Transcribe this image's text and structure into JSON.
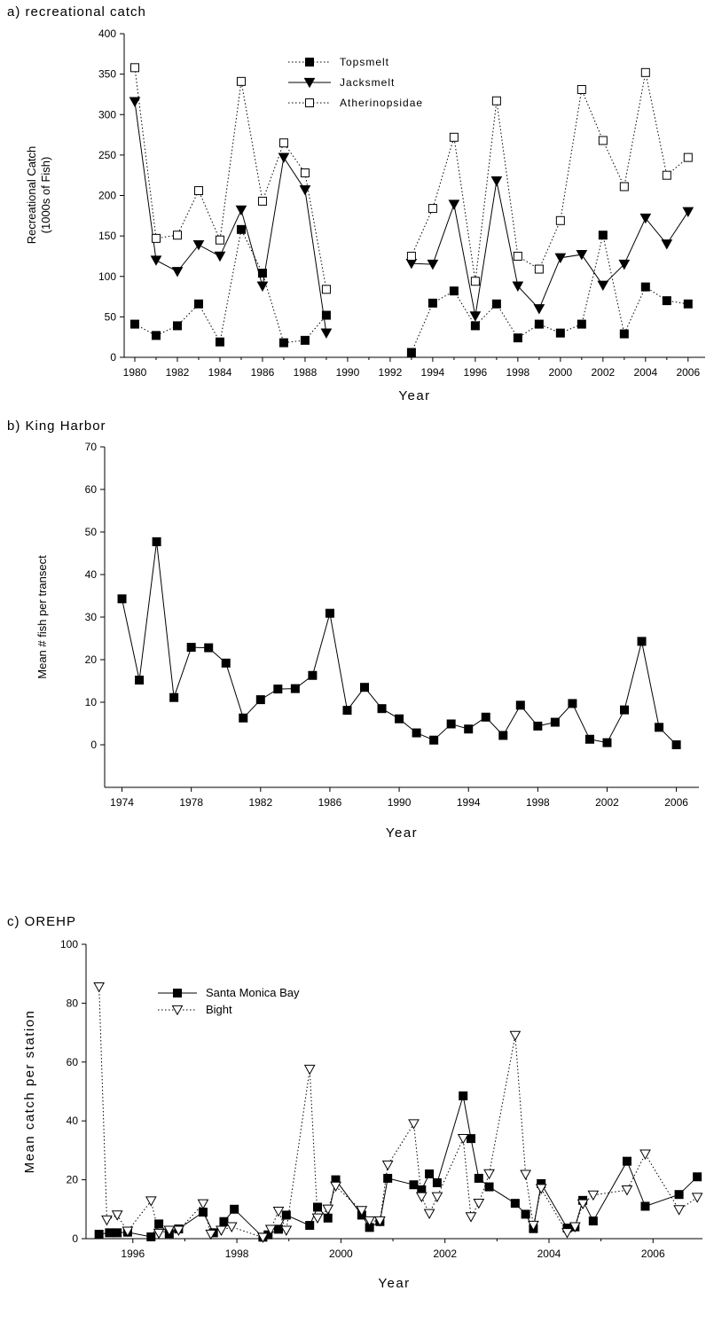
{
  "chart_data": [
    {
      "id": "a",
      "type": "line",
      "title": "a) recreational catch",
      "xlabel": "Year",
      "ylabel": "Recreational Catch",
      "ylabel2": "(1000s of Fish)",
      "xlim": [
        1979.5,
        2006.8
      ],
      "ylim": [
        0,
        400
      ],
      "xticks": [
        1980,
        1982,
        1984,
        1986,
        1988,
        1990,
        1992,
        1994,
        1996,
        1998,
        2000,
        2002,
        2004,
        2006
      ],
      "yticks": [
        0,
        50,
        100,
        150,
        200,
        250,
        300,
        350,
        400
      ],
      "legend_position": "top-center",
      "series": [
        {
          "name": "Topsmelt",
          "marker": "filled-square",
          "line": "dotted",
          "color": "#000000",
          "segments": [
            {
              "x": [
                1980,
                1981,
                1982,
                1983,
                1984,
                1985,
                1986,
                1987,
                1988,
                1989
              ],
              "y": [
                41,
                27,
                39,
                66,
                19,
                158,
                104,
                18,
                21,
                52
              ]
            },
            {
              "x": [
                1993,
                1994,
                1995,
                1996,
                1997,
                1998,
                1999,
                2000,
                2001,
                2002,
                2003,
                2004,
                2005,
                2006
              ],
              "y": [
                6,
                67,
                82,
                39,
                66,
                24,
                41,
                30,
                41,
                151,
                29,
                87,
                70,
                66
              ]
            }
          ]
        },
        {
          "name": "Jacksmelt",
          "marker": "filled-triangle-down",
          "line": "solid",
          "color": "#000000",
          "segments": [
            {
              "x": [
                1980,
                1981,
                1982,
                1983,
                1984,
                1985,
                1986,
                1987,
                1988,
                1989
              ],
              "y": [
                316,
                120,
                106,
                139,
                125,
                182,
                88,
                247,
                207,
                30
              ]
            },
            {
              "x": [
                1993,
                1994,
                1995,
                1996,
                1997,
                1998,
                1999,
                2000,
                2001,
                2002,
                2003,
                2004,
                2005,
                2006
              ],
              "y": [
                116,
                115,
                189,
                51,
                218,
                88,
                60,
                123,
                127,
                89,
                115,
                172,
                140,
                180
              ]
            }
          ]
        },
        {
          "name": "Atherinopsidae",
          "marker": "open-square",
          "line": "dotted",
          "color": "#000000",
          "segments": [
            {
              "x": [
                1980,
                1981,
                1982,
                1983,
                1984,
                1985,
                1986,
                1987,
                1988,
                1989
              ],
              "y": [
                358,
                147,
                151,
                206,
                145,
                341,
                193,
                265,
                228,
                84
              ]
            },
            {
              "x": [
                1993,
                1994,
                1995,
                1996,
                1997,
                1998,
                1999,
                2000,
                2001,
                2002,
                2003,
                2004,
                2005,
                2006
              ],
              "y": [
                125,
                184,
                272,
                94,
                317,
                125,
                109,
                169,
                331,
                268,
                211,
                352,
                225,
                247
              ]
            }
          ]
        }
      ]
    },
    {
      "id": "b",
      "type": "line",
      "title": "b) King Harbor",
      "xlabel": "Year",
      "ylabel": "Mean # fish per transect",
      "xlim": [
        1973,
        2007.3
      ],
      "ylim": [
        -10,
        70
      ],
      "xticks": [
        1974,
        1978,
        1982,
        1986,
        1990,
        1994,
        1998,
        2002,
        2006
      ],
      "yticks": [
        0,
        10,
        20,
        30,
        40,
        50,
        60,
        70
      ],
      "series": [
        {
          "name": "",
          "marker": "filled-square",
          "line": "solid",
          "color": "#000000",
          "segments": [
            {
              "x": [
                1974,
                1975,
                1976,
                1977,
                1978,
                1979,
                1980,
                1981,
                1982,
                1983,
                1984,
                1985,
                1986,
                1987,
                1988,
                1989,
                1990,
                1991,
                1992,
                1993,
                1994,
                1995,
                1996,
                1997,
                1998,
                1999,
                2000,
                2001,
                2002,
                2003,
                2004,
                2005,
                2006
              ],
              "y": [
                34.3,
                15.2,
                47.7,
                11.1,
                22.9,
                22.8,
                19.2,
                6.3,
                10.6,
                13.1,
                13.2,
                16.3,
                30.9,
                8.1,
                13.5,
                8.5,
                6.1,
                2.8,
                1.1,
                4.9,
                3.7,
                6.5,
                2.2,
                9.3,
                4.4,
                5.3,
                9.7,
                1.3,
                0.5,
                8.2,
                24.3,
                4.1,
                0
              ]
            }
          ]
        }
      ]
    },
    {
      "id": "c",
      "type": "line",
      "title": "c) OREHP",
      "xlabel": "Year",
      "ylabel": "Mean catch per station",
      "xlim": [
        1995.1,
        2006.95
      ],
      "ylim": [
        0,
        100
      ],
      "xticks": [
        1996,
        1998,
        2000,
        2002,
        2004,
        2006
      ],
      "yticks": [
        0,
        20,
        40,
        60,
        80,
        100
      ],
      "legend_position": "top-left",
      "series": [
        {
          "name": "Santa Monica Bay",
          "marker": "filled-square",
          "line": "solid",
          "color": "#000000",
          "segments": [
            {
              "x": [
                1995.35,
                1995.55,
                1995.7,
                1995.9,
                1996.35,
                1996.5,
                1996.7,
                1996.88,
                1997.35,
                1997.55,
                1997.75,
                1997.95,
                1998.5,
                1998.6,
                1998.8,
                1998.95,
                1999.4,
                1999.55,
                1999.75,
                1999.9,
                2000.4,
                2000.55,
                2000.75,
                2000.9,
                2001.4,
                2001.55,
                2001.7,
                2001.85,
                2002.35,
                2002.5,
                2002.65,
                2002.85,
                2003.35,
                2003.55,
                2003.7,
                2003.85,
                2004.35,
                2004.5,
                2004.65,
                2004.85,
                2005.5,
                2005.85,
                2006.5,
                2006.85
              ],
              "y": [
                1.5,
                2,
                2,
                2.2,
                0.6,
                5,
                1.7,
                3.3,
                9,
                2,
                5.8,
                10,
                0.5,
                1.3,
                3.2,
                8,
                4.5,
                10.7,
                7,
                20,
                8,
                3.8,
                5.8,
                20.5,
                18.3,
                16.6,
                22,
                19,
                48.5,
                34,
                20.5,
                17.6,
                12,
                8.3,
                3.4,
                18.7,
                3.6,
                4,
                13,
                6,
                26.3,
                11,
                15,
                21
              ]
            }
          ]
        },
        {
          "name": "Bight",
          "marker": "open-triangle-down",
          "line": "dotted",
          "color": "#000000",
          "segments": [
            {
              "x": [
                1995.35,
                1995.5,
                1995.7,
                1995.9,
                1996.35,
                1996.5,
                1996.7,
                1996.88,
                1997.35,
                1997.5,
                1997.7,
                1997.9,
                1998.5,
                1998.65,
                1998.8,
                1998.95,
                1999.4,
                1999.55,
                1999.75,
                1999.9,
                2000.4,
                2000.55,
                2000.75,
                2000.9,
                2001.4,
                2001.55,
                2001.7,
                2001.85,
                2002.35,
                2002.5,
                2002.65,
                2002.85,
                2003.35,
                2003.55,
                2003.7,
                2003.85,
                2004.35,
                2004.5,
                2004.65,
                2004.85,
                2005.5,
                2005.85,
                2006.5,
                2006.85
              ],
              "y": [
                85.5,
                6.3,
                8,
                2.5,
                12.8,
                1.8,
                2.8,
                2.8,
                11.8,
                1.5,
                2.8,
                4,
                0.4,
                3.1,
                9.3,
                2.8,
                57.5,
                7,
                10,
                17.8,
                9.5,
                6,
                6,
                25,
                39,
                14.2,
                8.5,
                14.2,
                34,
                7.4,
                12,
                22,
                69,
                21.8,
                4.5,
                17,
                2,
                4,
                11.8,
                14.8,
                16.5,
                28.7,
                9.8,
                14
              ]
            }
          ]
        }
      ]
    }
  ]
}
